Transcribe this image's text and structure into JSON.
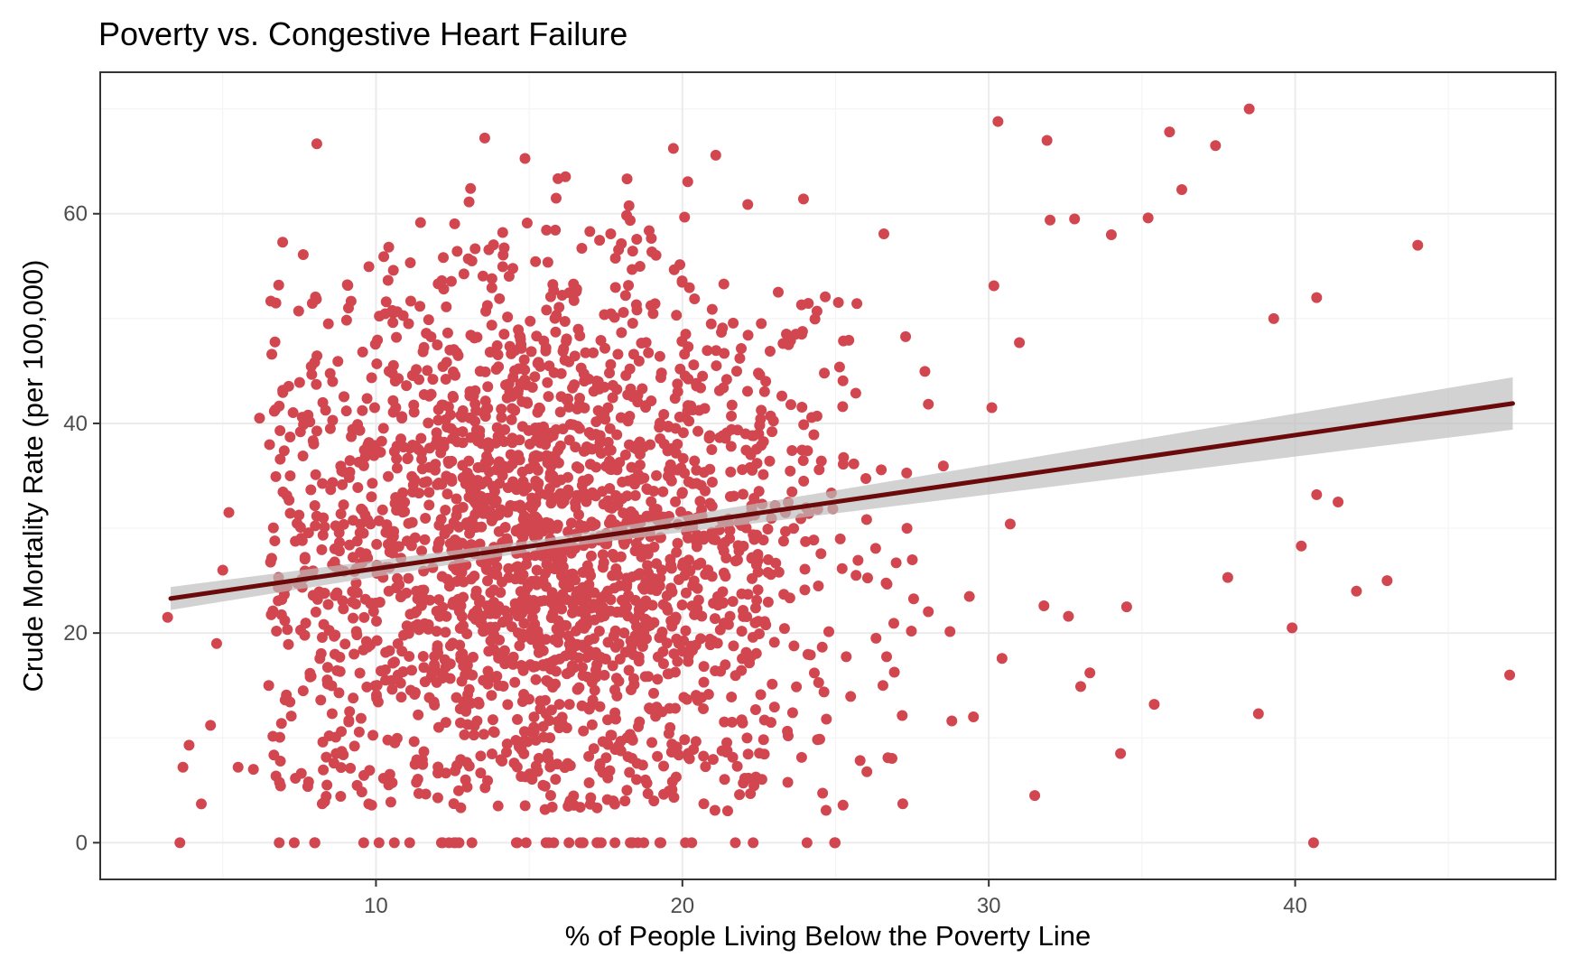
{
  "chart_data": {
    "type": "scatter",
    "title": "Poverty vs. Congestive Heart Failure",
    "xlabel": "% of People Living Below the Poverty Line",
    "ylabel": "Crude Mortality Rate (per 100,000)",
    "xlim": [
      1,
      48.5
    ],
    "ylim": [
      -3.5,
      73.5
    ],
    "x_ticks": [
      10,
      20,
      30,
      40
    ],
    "y_ticks": [
      0,
      20,
      40,
      60
    ],
    "x_tick_labels": [
      "10",
      "20",
      "30",
      "40"
    ],
    "y_tick_labels": [
      "0",
      "20",
      "40",
      "60"
    ],
    "grid": true,
    "legend": "none",
    "colors": {
      "points": "#d2474f",
      "trend_line": "#6b0a0a",
      "confidence_band": "#bdbdbd",
      "grid_major": "#ebebeb",
      "grid_minor": "#f4f4f4",
      "panel_border": "#333333"
    },
    "trend": {
      "type": "linear",
      "x": [
        3.3,
        47.1
      ],
      "y": [
        23.3,
        41.9
      ],
      "band_lower": [
        22.2,
        39.4
      ],
      "band_upper": [
        24.4,
        44.4
      ],
      "band_center_x": 15.6,
      "band_center_half_width": 0.5
    },
    "points": {
      "x": [
        3.2,
        3.6,
        3.7,
        3.9,
        4.3,
        4.6,
        4.8,
        5.0,
        5.2,
        5.5,
        6.0,
        6.2,
        6.5,
        7.2,
        7.8,
        8.0,
        8.4,
        38.5,
        40.7,
        44.0,
        47.0,
        35.9,
        37.4,
        36.3,
        42.0,
        43.0,
        39.3,
        39.9,
        40.2,
        40.6,
        38.8,
        34.5,
        37.8,
        35.4,
        41.4,
        40.7,
        31.5,
        32.8,
        33.3,
        34.3,
        35.2,
        29.5,
        30.3,
        31.0,
        31.8,
        32.0,
        33.0,
        30.1,
        30.7,
        31.9,
        32.6,
        34.0
      ],
      "y": [
        21.5,
        0,
        7.2,
        9.3,
        3.7,
        11.2,
        19.0,
        26.0,
        31.5,
        7.2,
        7.0,
        40.5,
        15.0,
        35.0,
        5.8,
        0,
        5.5,
        70,
        52,
        57,
        16,
        67.8,
        66.5,
        62.3,
        24,
        25,
        50,
        20.5,
        28.3,
        0,
        12.3,
        22.5,
        25.3,
        13.2,
        32.5,
        33.2,
        4.5,
        59.5,
        16.2,
        8.5,
        59.6,
        12.0,
        68.8,
        47.7,
        22.6,
        59.4,
        14.9,
        41.5,
        30.4,
        67.0,
        21.6,
        58.0
      ],
      "cloud_count": 2300,
      "cloud_center": [
        15.6,
        28.0
      ],
      "cloud_spread": [
        4.8,
        14.0
      ],
      "cloud_seed": 7
    }
  }
}
